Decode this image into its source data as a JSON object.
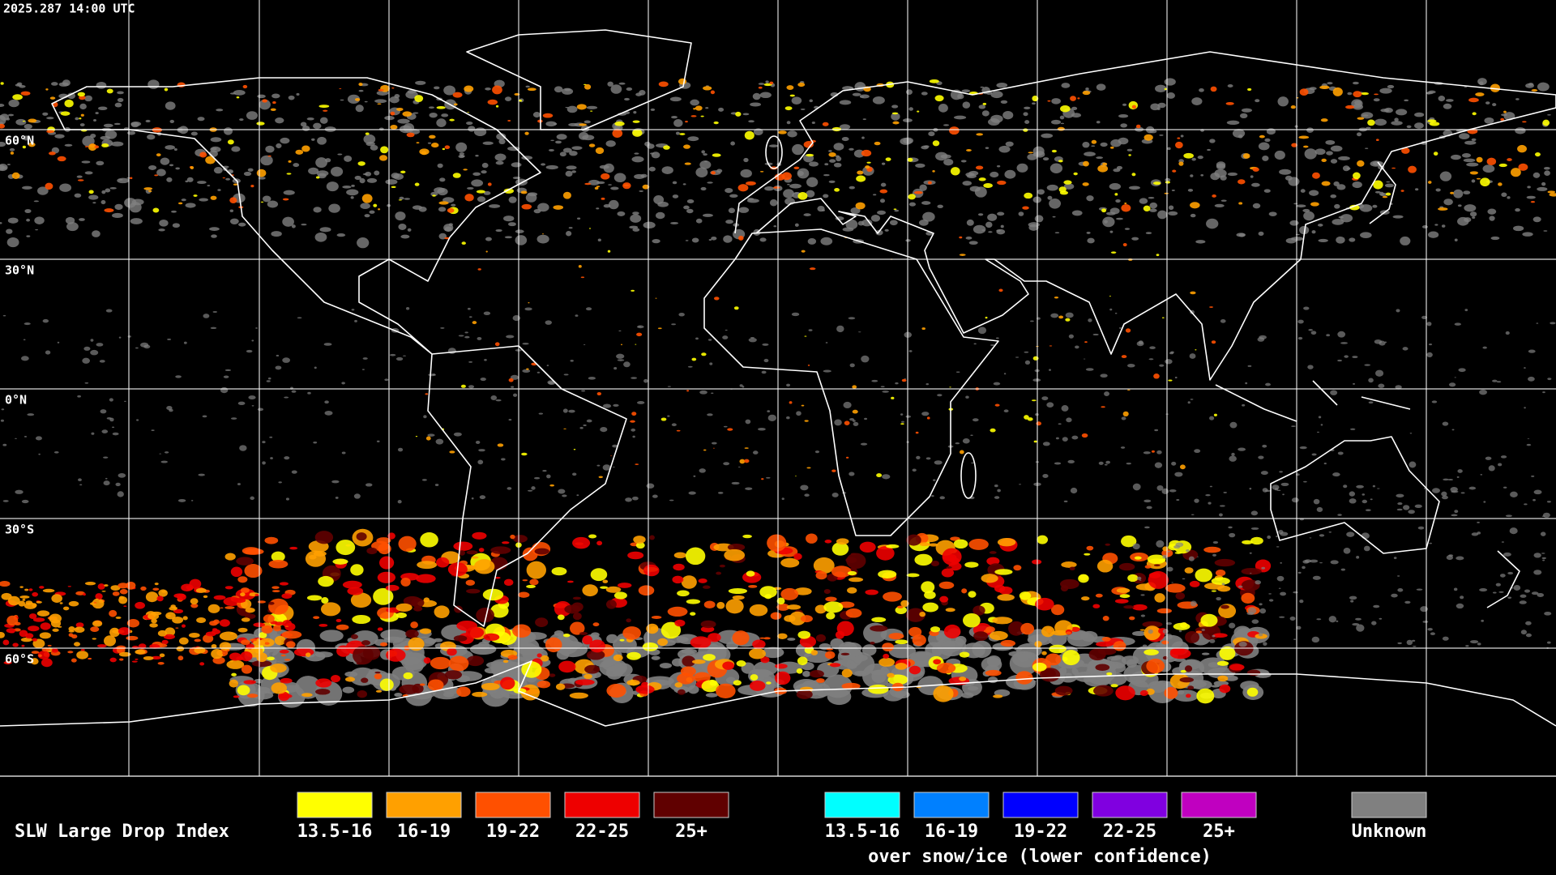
{
  "header": {
    "timestamp": "2025.287 14:00 UTC"
  },
  "map": {
    "latitude_labels": [
      "60°N",
      "30°N",
      "0°N",
      "30°S",
      "60°S"
    ]
  },
  "legend": {
    "title": "SLW Large Drop Index",
    "groups": [
      {
        "items": [
          {
            "label": "13.5-16",
            "color": "#ffff00"
          },
          {
            "label": "16-19",
            "color": "#ffa000"
          },
          {
            "label": "19-22",
            "color": "#ff5000"
          },
          {
            "label": "22-25",
            "color": "#ee0000"
          },
          {
            "label": "25+",
            "color": "#600000"
          }
        ]
      },
      {
        "items": [
          {
            "label": "13.5-16",
            "color": "#00ffff"
          },
          {
            "label": "16-19",
            "color": "#0080ff"
          },
          {
            "label": "19-22",
            "color": "#0000ff"
          },
          {
            "label": "22-25",
            "color": "#8000e0"
          },
          {
            "label": "25+",
            "color": "#c000c0"
          }
        ],
        "caption": "over snow/ice (lower confidence)"
      },
      {
        "items": [
          {
            "label": "Unknown",
            "color": "#808080"
          }
        ]
      }
    ]
  }
}
